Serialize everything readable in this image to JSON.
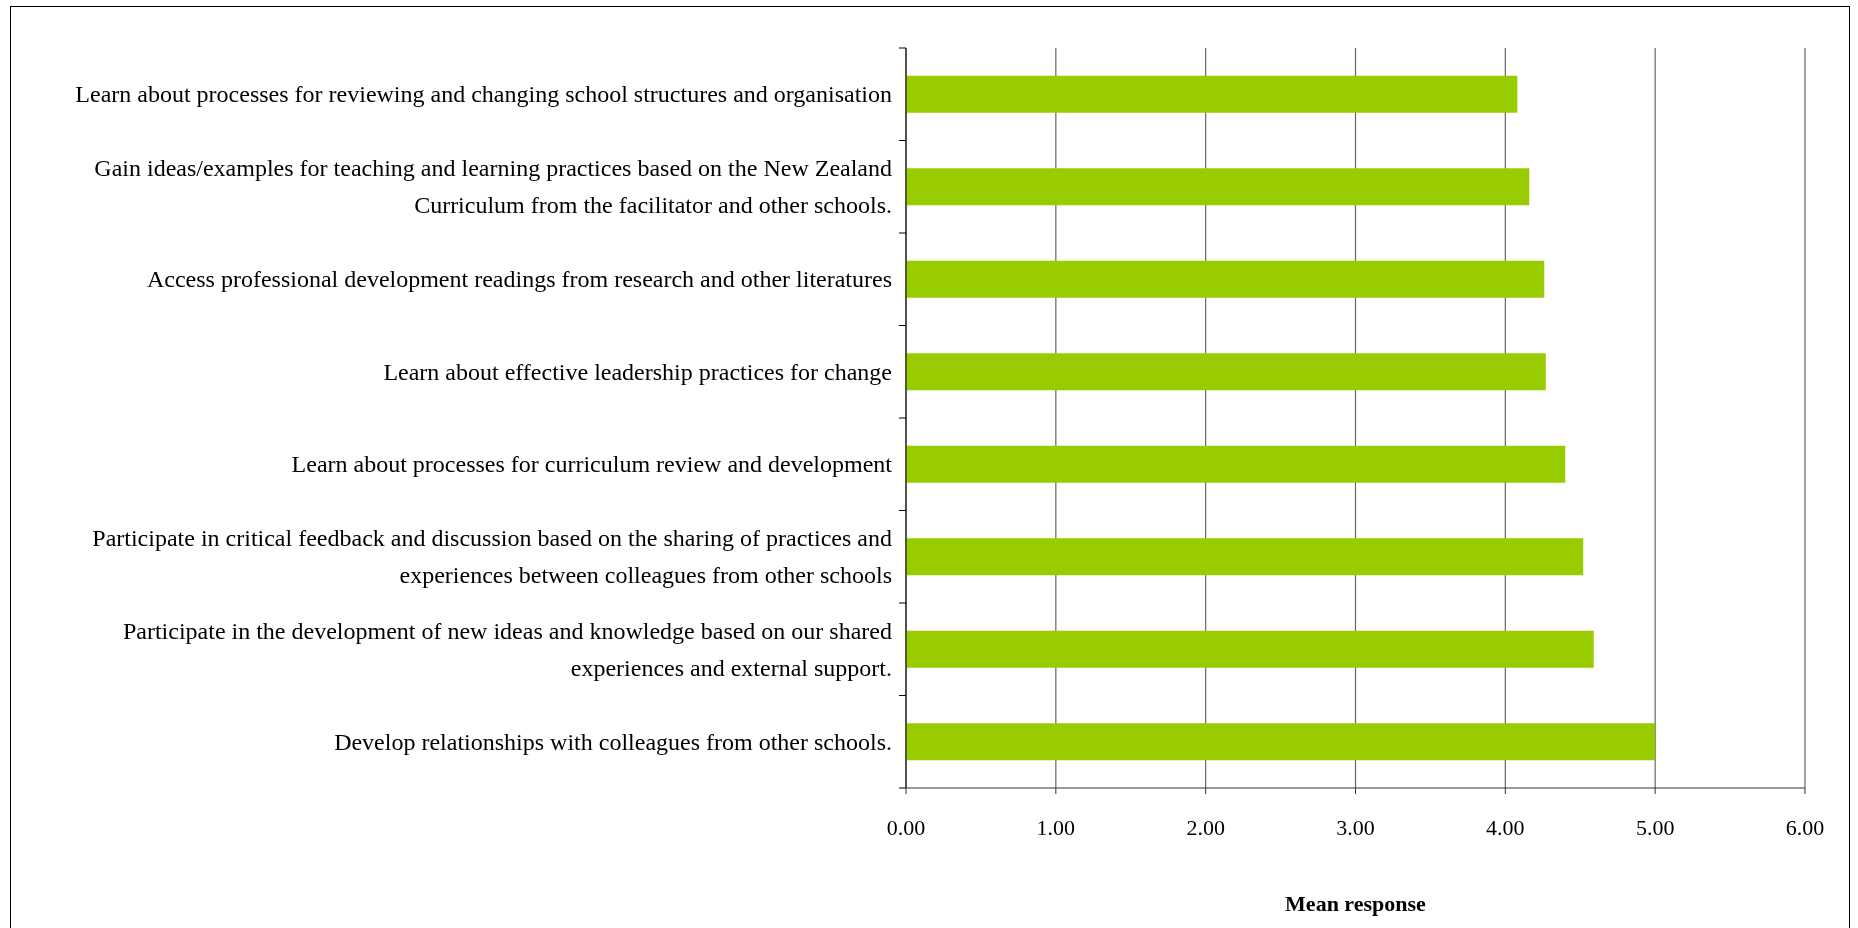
{
  "chart_data": {
    "type": "bar",
    "orientation": "horizontal",
    "xlabel": "Mean response",
    "categories": [
      "Learn about processes for reviewing and changing school structures and organisation",
      "Gain ideas/examples for teaching and learning practices based on the New Zealand Curriculum from the facilitator and other schools.",
      "Access professional development readings from research and other literatures",
      "Learn about effective leadership practices for change",
      "Learn about processes for curriculum review and development",
      "Participate in critical feedback and discussion based on the sharing of practices and experiences between colleagues from other schools",
      "Participate in the development of new ideas and knowledge based on our shared experiences and external support.",
      "Develop relationships with colleagues from other schools."
    ],
    "values": [
      4.08,
      4.16,
      4.26,
      4.27,
      4.4,
      4.52,
      4.59,
      5.0
    ],
    "color": "#99cc00",
    "xlim": [
      0,
      6
    ],
    "xticks": [
      {
        "value": 0,
        "label": "0.00"
      },
      {
        "value": 1,
        "label": "1.00"
      },
      {
        "value": 2,
        "label": "2.00"
      },
      {
        "value": 3,
        "label": "3.00"
      },
      {
        "value": 4,
        "label": "4.00"
      },
      {
        "value": 5,
        "label": "5.00"
      },
      {
        "value": 6,
        "label": "6.00"
      }
    ],
    "grid": "x"
  }
}
